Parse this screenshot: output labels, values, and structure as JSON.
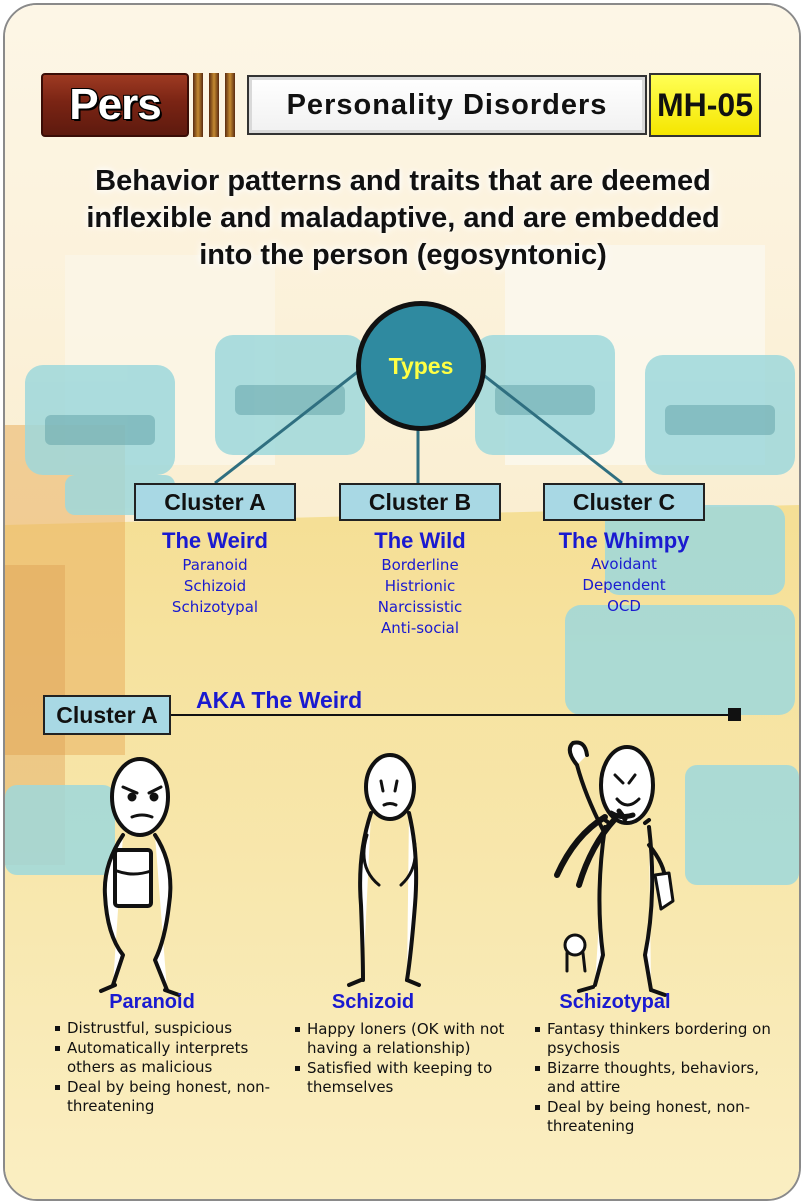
{
  "header": {
    "badge": "Pers",
    "title": "Personality Disorders",
    "code": "MH-05"
  },
  "intro": {
    "line1": "Behavior patterns and traits  that are deemed",
    "line2": "inflexible and maladaptive, and are embedded",
    "line3": "into the person (egosyntonic)"
  },
  "root": {
    "label": "Types"
  },
  "clusters": [
    {
      "label": "Cluster A",
      "nickname": "The Weird",
      "items": [
        "Paranoid",
        "Schizoid",
        "Schizotypal"
      ]
    },
    {
      "label": "Cluster B",
      "nickname": "The Wild",
      "items": [
        "Borderline",
        "Histrionic",
        "Narcissistic",
        "Anti-social"
      ]
    },
    {
      "label": "Cluster C",
      "nickname": "The Whimpy",
      "items": [
        "Avoidant",
        "Dependent",
        "OCD"
      ]
    }
  ],
  "section": {
    "label": "Cluster A",
    "aka": "AKA The Weird"
  },
  "figures": [
    {
      "name": "Paranoid",
      "bullets": [
        "Distrustful, suspicious",
        "Automatically interprets others as malicious",
        "Deal by being honest, non-threatening"
      ]
    },
    {
      "name": "Schizoid",
      "bullets": [
        "Happy loners (OK with not having a relationship)",
        "Satisfied with keeping to themselves"
      ]
    },
    {
      "name": "Schizotypal",
      "bullets": [
        "Fantasy thinkers bordering on psychosis",
        "Bizarre thoughts, behaviors, and attire",
        "Deal by being honest, non-threatening"
      ]
    }
  ],
  "colors": {
    "cluster_box": "#a8d8e4",
    "label_blue": "#1a1ad0",
    "types_node": "#2f8aa0",
    "types_text": "#ffff44",
    "badge_red": "#7a2414",
    "code_yellow": "#f5e600"
  }
}
